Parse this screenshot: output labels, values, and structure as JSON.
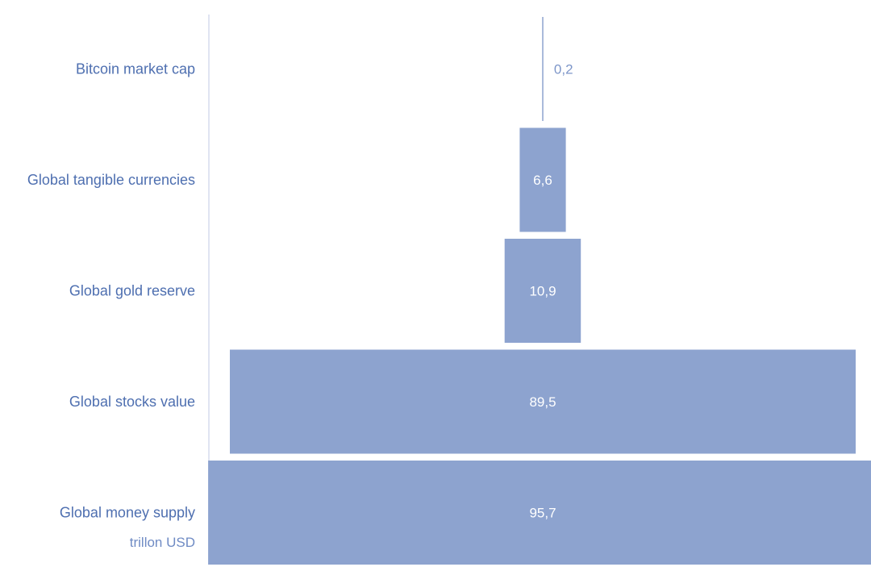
{
  "chart_data": {
    "type": "bar",
    "orientation": "horizontal",
    "layout": "funnel",
    "categories": [
      "Bitcoin market cap",
      "Global tangible currencies",
      "Global gold reserve",
      "Global stocks value",
      "Global money supply"
    ],
    "values": [
      0.2,
      6.6,
      10.9,
      89.5,
      95.7
    ],
    "value_labels": [
      "0,2",
      "6,6",
      "10,9",
      "89,5",
      "95,7"
    ],
    "unit_label": "trillon USD",
    "colors": {
      "bar": "#8da3cf",
      "category_text": "#4e6fb0",
      "unit_text": "#6f8bc4",
      "outside_value_text": "#7d96c9",
      "axis_line": "#d6dced"
    },
    "grid": false,
    "legend": "none"
  }
}
